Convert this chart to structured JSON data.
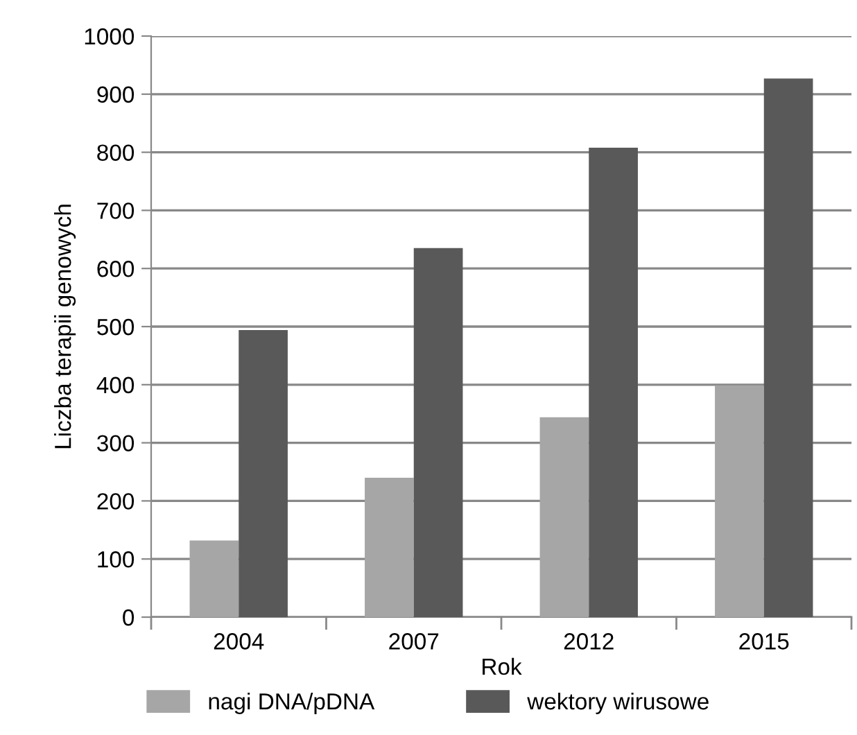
{
  "chart_data": {
    "type": "bar",
    "xlabel": "Rok",
    "ylabel": "Liczba terapii genowych",
    "categories": [
      "2004",
      "2007",
      "2012",
      "2015"
    ],
    "series": [
      {
        "name": "nagi DNA/pDNA",
        "color": "#a6a6a6",
        "values": [
          132,
          240,
          344,
          399
        ]
      },
      {
        "name": "wektory wirusowe",
        "color": "#595959",
        "values": [
          494,
          635,
          808,
          927
        ]
      }
    ],
    "ylim": [
      0,
      1000
    ],
    "yticks": [
      0,
      100,
      200,
      300,
      400,
      500,
      600,
      700,
      800,
      900,
      1000
    ],
    "grid": "y",
    "legend": "bottom"
  }
}
